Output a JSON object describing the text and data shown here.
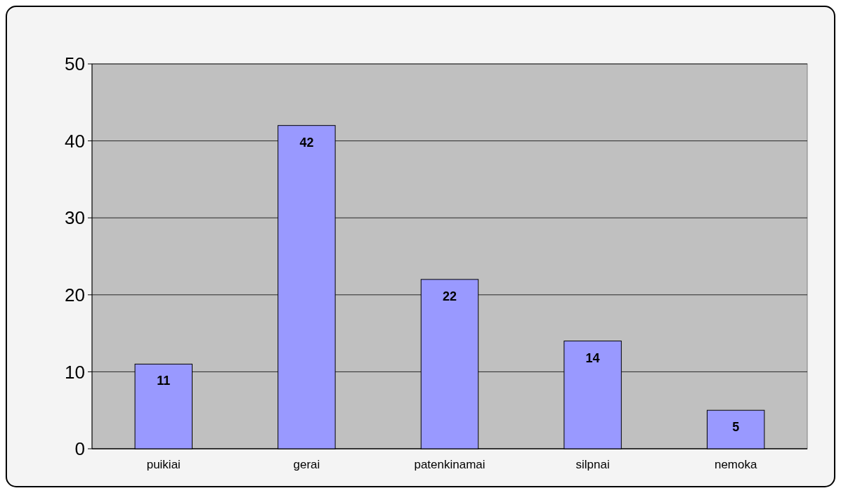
{
  "chart_data": {
    "type": "bar",
    "categories": [
      "puikiai",
      "gerai",
      "patenkinamai",
      "silpnai",
      "nemoka"
    ],
    "values": [
      11,
      42,
      22,
      14,
      5
    ],
    "color": "#9999ff",
    "ylim": [
      0,
      50
    ],
    "yticks": [
      0,
      10,
      20,
      30,
      40,
      50
    ],
    "grid": "y",
    "data_labels": true
  }
}
